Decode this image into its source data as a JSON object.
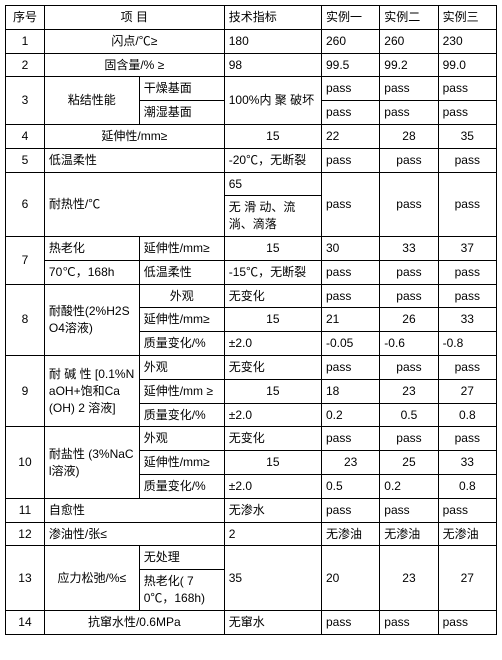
{
  "header": {
    "c0": "序号",
    "c1": "项    目",
    "c3": "技术指标",
    "c4": "实例一",
    "c5": "实例二",
    "c6": "实例三"
  },
  "r1": {
    "no": "1",
    "name": "闪点/℃≥",
    "spec": "180",
    "e1": "260",
    "e2": "260",
    "e3": "230"
  },
  "r2": {
    "no": "2",
    "name": "固含量/%  ≥",
    "spec": "98",
    "e1": "99.5",
    "e2": "99.2",
    "e3": "99.0"
  },
  "r3": {
    "no": "3",
    "name": "粘结性能",
    "sub1": "干燥基面",
    "sub2": "潮湿基面",
    "spec": "100%内 聚 破坏",
    "e1a": "pass",
    "e2a": "pass",
    "e3a": "pass",
    "e1b": "pass",
    "e2b": "pass",
    "e3b": "pass"
  },
  "r4": {
    "no": "4",
    "name": "延伸性/mm≥",
    "spec": "15",
    "e1": "22",
    "e2": "28",
    "e3": "35"
  },
  "r5": {
    "no": "5",
    "name": "低温柔性",
    "spec": "-20℃，无断裂",
    "e1": "pass",
    "e2": "pass",
    "e3": "pass"
  },
  "r6": {
    "no": "6",
    "name": "耐热性/℃",
    "spec1": "65",
    "spec2": "无 滑 动、流淌、滴落",
    "e1": "pass",
    "e2": "pass",
    "e3": "pass"
  },
  "r7": {
    "no": "7",
    "name1": "热老化",
    "name2": "70℃，168h",
    "sub1": "延伸性/mm≥",
    "sub2": "低温柔性",
    "spec1": "15",
    "spec2": "-15℃，无断裂",
    "e1a": "30",
    "e2a": "33",
    "e3a": "37",
    "e1b": "pass",
    "e2b": "pass",
    "e3b": "pass"
  },
  "r8": {
    "no": "8",
    "name": "耐酸性(2%H2SO4溶液)",
    "sub1": "外观",
    "sub2": "延伸性/mm≥",
    "sub3": "质量变化/%",
    "spec1": "无变化",
    "spec2": "15",
    "spec3": "±2.0",
    "e1a": "pass",
    "e2a": "pass",
    "e3a": "pass",
    "e1b": "21",
    "e2b": "26",
    "e3b": "33",
    "e1c": "-0.05",
    "e2c": "-0.6",
    "e3c": "-0.8"
  },
  "r9": {
    "no": "9",
    "name": "耐  碱  性 [0.1%NaOH+饱和Ca (OH) 2 溶液]",
    "sub1": "外观",
    "sub2": "延伸性/mm ≥",
    "sub3": "质量变化/%",
    "spec1": "无变化",
    "spec2": "15",
    "spec3": "±2.0",
    "e1a": "pass",
    "e2a": "pass",
    "e3a": "pass",
    "e1b": "18",
    "e2b": "23",
    "e3b": "27",
    "e1c": "0.2",
    "e2c": "0.5",
    "e3c": "0.8"
  },
  "r10": {
    "no": "10",
    "name": "耐盐性 (3%NaCl溶液)",
    "sub1": "外观",
    "sub2": "延伸性/mm≥",
    "sub3": "质量变化/%",
    "spec1": "无变化",
    "spec2": "15",
    "spec3": "±2.0",
    "e1a": "pass",
    "e2a": "pass",
    "e3a": "pass",
    "e1b": "23",
    "e2b": "25",
    "e3b": "33",
    "e1c": "0.5",
    "e2c": "0.2",
    "e3c": "0.8"
  },
  "r11": {
    "no": "11",
    "name": "自愈性",
    "spec": "无渗水",
    "e1": "pass",
    "e2": "pass",
    "e3": "pass"
  },
  "r12": {
    "no": "12",
    "name": "渗油性/张≤",
    "spec": "2",
    "e1": "无渗油",
    "e2": "无渗油",
    "e3": "无渗油"
  },
  "r13": {
    "no": "13",
    "name": "应力松弛/%≤",
    "sub1": "无处理",
    "sub2": "热老化( 70℃，168h)",
    "spec": "35",
    "e1": "20",
    "e2": "23",
    "e3": "27"
  },
  "r14": {
    "no": "14",
    "name": "抗窜水性/0.6MPa",
    "spec": "无窜水",
    "e1": "pass",
    "e2": "pass",
    "e3": "pass"
  }
}
